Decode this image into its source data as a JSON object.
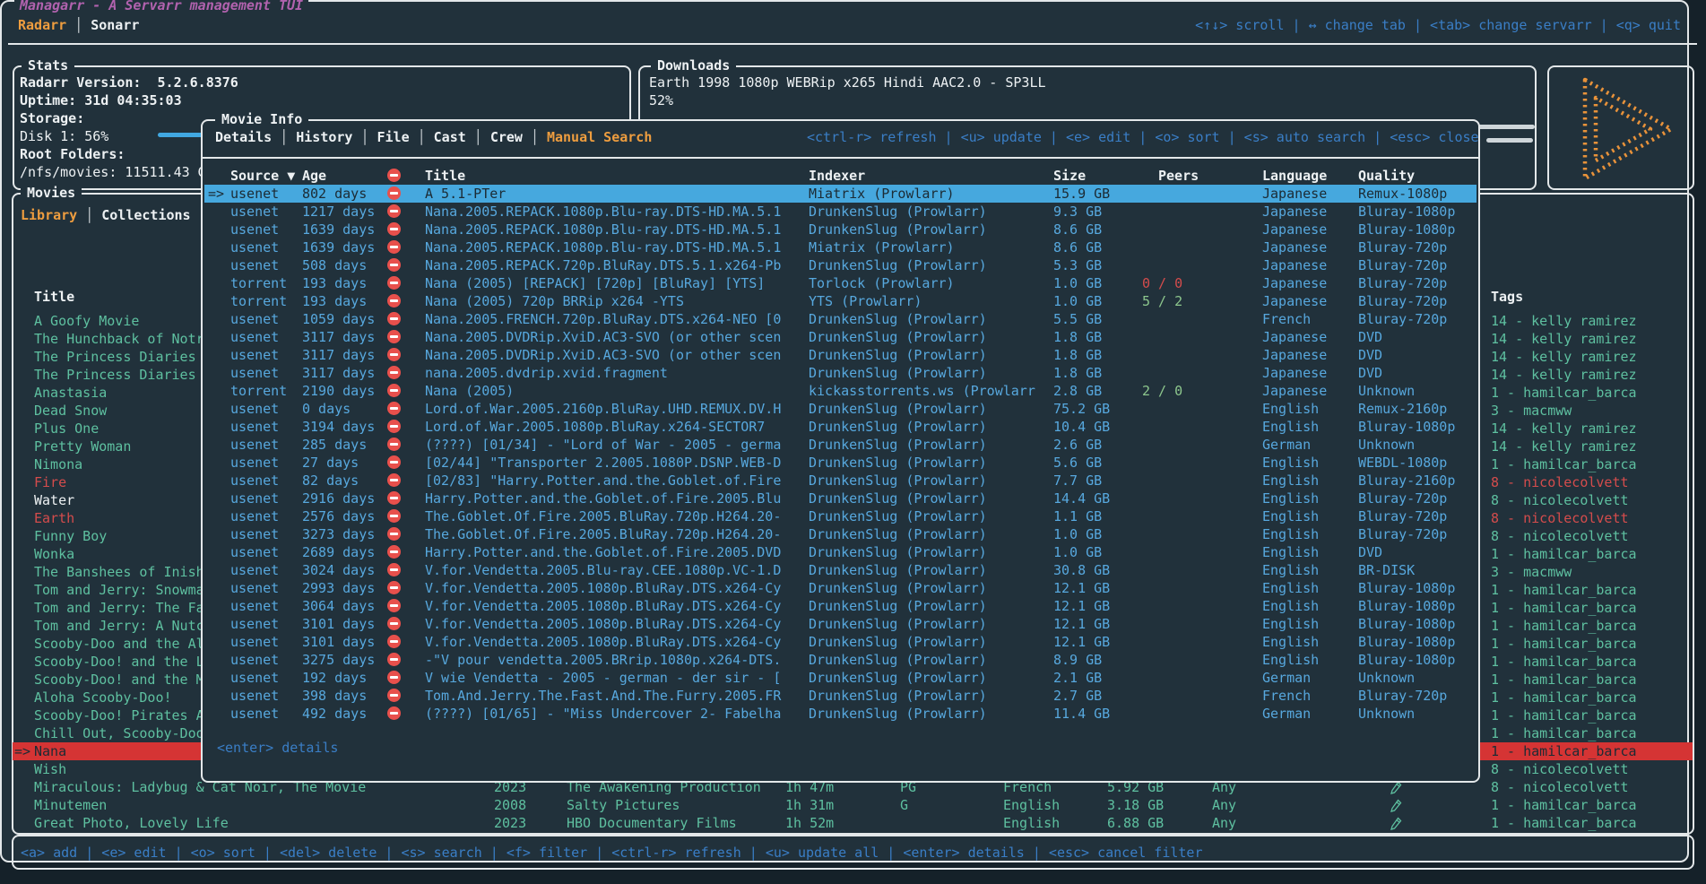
{
  "app": {
    "title": "Managarr - A Servarr management TUI",
    "tabs": [
      {
        "label": "Radarr",
        "active": true
      },
      {
        "label": "Sonarr",
        "active": false
      }
    ],
    "top_keybinds": "<↑↓> scroll | ↔ change tab | <tab> change servarr | <q> quit",
    "bottom_keybinds": "<a> add | <e> edit | <o> sort | <del> delete | <s> search | <f> filter | <ctrl-r> refresh | <u> update all | <enter> details | <esc> cancel filter"
  },
  "colors": {
    "accent_orange": "#ee9d3f",
    "title_magenta": "#b162ae",
    "keybind_blue": "#3a7ec6",
    "table_blue": "#57a8de",
    "list_teal": "#5ec0a0",
    "alert_red": "#d44c4c",
    "selected_red_bg": "#d53434",
    "selected_blue_bg": "#46a8de",
    "peers_green": "#8dc78d"
  },
  "stats": {
    "title": "Stats",
    "version": "Radarr Version:  5.2.6.8376",
    "uptime": "Uptime: 31d 04:35:03",
    "storage_label": "Storage:",
    "disk_label": "Disk 1: 56%",
    "disk_percent": 56,
    "root_folders_label": "Root Folders:",
    "root_folder": "/nfs/movies: 11511.43 GB"
  },
  "downloads": {
    "title": "Downloads",
    "item": "Earth 1998 1080p WEBRip x265 Hindi AAC2.0 - SP3LL",
    "percent_label": "52%",
    "percent": 52
  },
  "movies": {
    "title": "Movies",
    "tabs": [
      {
        "label": "Library",
        "active": true
      },
      {
        "label": "Collections",
        "active": false
      }
    ],
    "header": {
      "title": "Title",
      "tags": "Tags"
    },
    "rows": [
      {
        "title": "A Goofy Movie",
        "tag": "14 - kelly ramirez"
      },
      {
        "title": "The Hunchback of Notr",
        "tag": "14 - kelly ramirez"
      },
      {
        "title": "The Princess Diaries",
        "tag": "14 - kelly ramirez"
      },
      {
        "title": "The Princess Diaries",
        "tag": "14 - kelly ramirez"
      },
      {
        "title": "Anastasia",
        "tag": "1 - hamilcar_barca"
      },
      {
        "title": "Dead Snow",
        "tag": "3 - macmww"
      },
      {
        "title": "Plus One",
        "tag": "14 - kelly ramirez"
      },
      {
        "title": "Pretty Woman",
        "tag": "14 - kelly ramirez"
      },
      {
        "title": "Nimona",
        "tag": "1 - hamilcar_barca"
      },
      {
        "title": "Fire",
        "title_color": "red",
        "tag": "8 - nicolecolvett",
        "tag_color": "red"
      },
      {
        "title": "Water",
        "title_color": "white",
        "tag": "8 - nicolecolvett"
      },
      {
        "title": "Earth",
        "title_color": "red",
        "tag": "8 - nicolecolvett",
        "tag_color": "red"
      },
      {
        "title": "Funny Boy",
        "tag": "8 - nicolecolvett"
      },
      {
        "title": "Wonka",
        "tag": "1 - hamilcar_barca"
      },
      {
        "title": "The Banshees of Inish",
        "tag": "3 - macmww"
      },
      {
        "title": "Tom and Jerry: Snowma",
        "tag": "1 - hamilcar_barca"
      },
      {
        "title": "Tom and Jerry: The Fa",
        "tag": "1 - hamilcar_barca"
      },
      {
        "title": "Tom and Jerry: A Nutc",
        "tag": "1 - hamilcar_barca"
      },
      {
        "title": "Scooby-Doo and the Al",
        "tag": "1 - hamilcar_barca"
      },
      {
        "title": "Scooby-Doo! and the L",
        "tag": "1 - hamilcar_barca"
      },
      {
        "title": "Scooby-Doo! and the M",
        "tag": "1 - hamilcar_barca"
      },
      {
        "title": "Aloha Scooby-Doo!",
        "tag": "1 - hamilcar_barca"
      },
      {
        "title": "Scooby-Doo! Pirates A",
        "tag": "1 - hamilcar_barca"
      },
      {
        "title": "Chill Out, Scooby-Doo",
        "tag": "1 - hamilcar_barca"
      },
      {
        "title": "Nana",
        "selected": true,
        "tag": "1 - hamilcar_barca"
      },
      {
        "title": "Wish",
        "tag": "8 - nicolecolvett"
      },
      {
        "title": "Miraculous: Ladybug & Cat Noir, The Movie",
        "year": "2023",
        "studio": "The Awakening Production",
        "runtime": "1h 47m",
        "rating": "PG",
        "language": "French",
        "size": "5.92 GB",
        "profile": "Any",
        "monitored": true,
        "tag": "8 - nicolecolvett"
      },
      {
        "title": "Minutemen",
        "year": "2008",
        "studio": "Salty Pictures",
        "runtime": "1h 31m",
        "rating": "G",
        "language": "English",
        "size": "3.18 GB",
        "profile": "Any",
        "monitored": true,
        "tag": "1 - hamilcar_barca"
      },
      {
        "title": "Great Photo, Lovely Life",
        "year": "2023",
        "studio": "HBO Documentary Films",
        "runtime": "1h 52m",
        "rating": "",
        "language": "English",
        "size": "6.88 GB",
        "profile": "Any",
        "monitored": true,
        "tag": "1 - hamilcar_barca"
      }
    ]
  },
  "modal": {
    "title": "Movie Info",
    "tabs": [
      {
        "label": "Details",
        "active": false
      },
      {
        "label": "History",
        "active": false
      },
      {
        "label": "File",
        "active": false
      },
      {
        "label": "Cast",
        "active": false
      },
      {
        "label": "Crew",
        "active": false
      },
      {
        "label": "Manual Search",
        "active": true
      }
    ],
    "keybinds": "<ctrl-r> refresh | <u> update | <e> edit | <o> sort | <s> auto search | <esc> close",
    "footer_keybind": "<enter> details",
    "columns": {
      "source": "Source ▼",
      "age": "Age",
      "title": "Title",
      "indexer": "Indexer",
      "size": "Size",
      "peers": "Peers",
      "language": "Language",
      "quality": "Quality"
    },
    "rows": [
      {
        "source": "usenet",
        "age": "802 days",
        "title": "A 5.1-PTer",
        "indexer": "Miatrix (Prowlarr)",
        "size": "15.9 GB",
        "language": "Japanese",
        "quality": "Remux-1080p",
        "selected": true
      },
      {
        "source": "usenet",
        "age": "1217 days",
        "title": "Nana.2005.REPACK.1080p.Blu-ray.DTS-HD.MA.5.1",
        "indexer": "DrunkenSlug (Prowlarr)",
        "size": "9.3 GB",
        "language": "Japanese",
        "quality": "Bluray-1080p"
      },
      {
        "source": "usenet",
        "age": "1639 days",
        "title": "Nana.2005.REPACK.1080p.Blu-ray.DTS-HD.MA.5.1",
        "indexer": "DrunkenSlug (Prowlarr)",
        "size": "8.6 GB",
        "language": "Japanese",
        "quality": "Bluray-1080p"
      },
      {
        "source": "usenet",
        "age": "1639 days",
        "title": "Nana.2005.REPACK.1080p.Blu-ray.DTS-HD.MA.5.1",
        "indexer": "Miatrix (Prowlarr)",
        "size": "8.6 GB",
        "language": "Japanese",
        "quality": "Bluray-720p"
      },
      {
        "source": "usenet",
        "age": "508 days",
        "title": "Nana.2005.REPACK.720p.BluRay.DTS.5.1.x264-Pb",
        "indexer": "DrunkenSlug (Prowlarr)",
        "size": "5.3 GB",
        "language": "Japanese",
        "quality": "Bluray-720p"
      },
      {
        "source": "torrent",
        "age": "193 days",
        "title": "Nana (2005) [REPACK] [720p] [BluRay] [YTS]",
        "indexer": "Torlock (Prowlarr)",
        "size": "1.0 GB",
        "peers": "0 / 0",
        "peers_color": "red",
        "language": "Japanese",
        "quality": "Bluray-720p"
      },
      {
        "source": "torrent",
        "age": "193 days",
        "title": "Nana (2005) 720p BRRip x264 -YTS",
        "indexer": "YTS (Prowlarr)",
        "size": "1.0 GB",
        "peers": "5 / 2",
        "peers_color": "green",
        "language": "Japanese",
        "quality": "Bluray-720p"
      },
      {
        "source": "usenet",
        "age": "1059 days",
        "title": "Nana.2005.FRENCH.720p.BluRay.DTS.x264-NEO [0",
        "indexer": "DrunkenSlug (Prowlarr)",
        "size": "5.5 GB",
        "language": "French",
        "quality": "Bluray-720p"
      },
      {
        "source": "usenet",
        "age": "3117 days",
        "title": "Nana.2005.DVDRip.XviD.AC3-SVO (or other scen",
        "indexer": "DrunkenSlug (Prowlarr)",
        "size": "1.8 GB",
        "language": "Japanese",
        "quality": "DVD"
      },
      {
        "source": "usenet",
        "age": "3117 days",
        "title": "Nana.2005.DVDRip.XviD.AC3-SVO (or other scen",
        "indexer": "DrunkenSlug (Prowlarr)",
        "size": "1.8 GB",
        "language": "Japanese",
        "quality": "DVD"
      },
      {
        "source": "usenet",
        "age": "3117 days",
        "title": "nana.2005.dvdrip.xvid.fragment",
        "indexer": "DrunkenSlug (Prowlarr)",
        "size": "1.8 GB",
        "language": "Japanese",
        "quality": "DVD"
      },
      {
        "source": "torrent",
        "age": "2190 days",
        "title": "Nana (2005)",
        "indexer": "kickasstorrents.ws (Prowlarr",
        "size": "2.8 GB",
        "peers": "2 / 0",
        "peers_color": "green",
        "language": "Japanese",
        "quality": "Unknown"
      },
      {
        "source": "usenet",
        "age": "0 days",
        "title": "Lord.of.War.2005.2160p.BluRay.UHD.REMUX.DV.H",
        "indexer": "DrunkenSlug (Prowlarr)",
        "size": "75.2 GB",
        "language": "English",
        "quality": "Remux-2160p"
      },
      {
        "source": "usenet",
        "age": "3194 days",
        "title": "Lord.of.War.2005.1080p.BluRay.x264-SECTOR7",
        "indexer": "DrunkenSlug (Prowlarr)",
        "size": "10.4 GB",
        "language": "English",
        "quality": "Bluray-1080p"
      },
      {
        "source": "usenet",
        "age": "285 days",
        "title": "(????) [01/34] - \"Lord of War - 2005 - germa",
        "indexer": "DrunkenSlug (Prowlarr)",
        "size": "2.6 GB",
        "language": "German",
        "quality": "Unknown"
      },
      {
        "source": "usenet",
        "age": "27 days",
        "title": "[02/44] \"Transporter 2.2005.1080P.DSNP.WEB-D",
        "indexer": "DrunkenSlug (Prowlarr)",
        "size": "5.6 GB",
        "language": "English",
        "quality": "WEBDL-1080p"
      },
      {
        "source": "usenet",
        "age": "82 days",
        "title": "[02/83] \"Harry.Potter.and.the.Goblet.of.Fire",
        "indexer": "DrunkenSlug (Prowlarr)",
        "size": "7.7 GB",
        "language": "English",
        "quality": "Bluray-2160p"
      },
      {
        "source": "usenet",
        "age": "2916 days",
        "title": "Harry.Potter.and.the.Goblet.of.Fire.2005.Blu",
        "indexer": "DrunkenSlug (Prowlarr)",
        "size": "14.4 GB",
        "language": "English",
        "quality": "Bluray-720p"
      },
      {
        "source": "usenet",
        "age": "2576 days",
        "title": "The.Goblet.Of.Fire.2005.BluRay.720p.H264.20-",
        "indexer": "DrunkenSlug (Prowlarr)",
        "size": "1.1 GB",
        "language": "English",
        "quality": "Bluray-720p"
      },
      {
        "source": "usenet",
        "age": "3273 days",
        "title": "The.Goblet.Of.Fire.2005.BluRay.720p.H264.20-",
        "indexer": "DrunkenSlug (Prowlarr)",
        "size": "1.0 GB",
        "language": "English",
        "quality": "Bluray-720p"
      },
      {
        "source": "usenet",
        "age": "2689 days",
        "title": "Harry.Potter.and.the.Goblet.of.Fire.2005.DVD",
        "indexer": "DrunkenSlug (Prowlarr)",
        "size": "1.0 GB",
        "language": "English",
        "quality": "DVD"
      },
      {
        "source": "usenet",
        "age": "3024 days",
        "title": "V.for.Vendetta.2005.Blu-ray.CEE.1080p.VC-1.D",
        "indexer": "DrunkenSlug (Prowlarr)",
        "size": "30.8 GB",
        "language": "English",
        "quality": "BR-DISK"
      },
      {
        "source": "usenet",
        "age": "2993 days",
        "title": "V.for.Vendetta.2005.1080p.BluRay.DTS.x264-Cy",
        "indexer": "DrunkenSlug (Prowlarr)",
        "size": "12.1 GB",
        "language": "English",
        "quality": "Bluray-1080p"
      },
      {
        "source": "usenet",
        "age": "3064 days",
        "title": "V.for.Vendetta.2005.1080p.BluRay.DTS.x264-Cy",
        "indexer": "DrunkenSlug (Prowlarr)",
        "size": "12.1 GB",
        "language": "English",
        "quality": "Bluray-1080p"
      },
      {
        "source": "usenet",
        "age": "3101 days",
        "title": "V.for.Vendetta.2005.1080p.BluRay.DTS.x264-Cy",
        "indexer": "DrunkenSlug (Prowlarr)",
        "size": "12.1 GB",
        "language": "English",
        "quality": "Bluray-1080p"
      },
      {
        "source": "usenet",
        "age": "3101 days",
        "title": "V.for.Vendetta.2005.1080p.BluRay.DTS.x264-Cy",
        "indexer": "DrunkenSlug (Prowlarr)",
        "size": "12.1 GB",
        "language": "English",
        "quality": "Bluray-1080p"
      },
      {
        "source": "usenet",
        "age": "3275 days",
        "title": "-\"V pour vendetta.2005.BRrip.1080p.x264-DTS.",
        "indexer": "DrunkenSlug (Prowlarr)",
        "size": "8.9 GB",
        "language": "English",
        "quality": "Bluray-1080p"
      },
      {
        "source": "usenet",
        "age": "192 days",
        "title": "V wie Vendetta - 2005 - german - der sir - [",
        "indexer": "DrunkenSlug (Prowlarr)",
        "size": "2.1 GB",
        "language": "German",
        "quality": "Unknown"
      },
      {
        "source": "usenet",
        "age": "398 days",
        "title": "Tom.And.Jerry.The.Fast.And.The.Furry.2005.FR",
        "indexer": "DrunkenSlug (Prowlarr)",
        "size": "2.7 GB",
        "language": "French",
        "quality": "Bluray-720p"
      },
      {
        "source": "usenet",
        "age": "492 days",
        "title": "(????) [01/65] - \"Miss Undercover 2- Fabelha",
        "indexer": "DrunkenSlug (Prowlarr)",
        "size": "11.4 GB",
        "language": "German",
        "quality": "Unknown"
      }
    ]
  }
}
